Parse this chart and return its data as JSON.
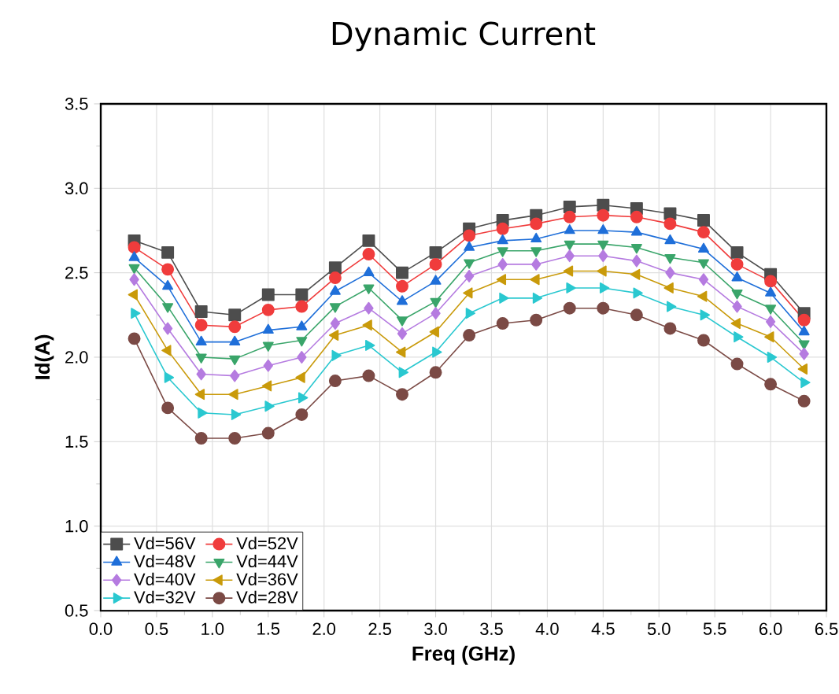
{
  "chart_data": {
    "type": "line",
    "title": "Dynamic Current",
    "xlabel": "Freq (GHz)",
    "ylabel": "Id(A)",
    "x": [
      0.3,
      0.6,
      0.9,
      1.2,
      1.5,
      1.8,
      2.1,
      2.4,
      2.7,
      3.0,
      3.3,
      3.6,
      3.9,
      4.2,
      4.5,
      4.8,
      5.1,
      5.4,
      5.7,
      6.0,
      6.3
    ],
    "xlim": [
      0,
      6.5
    ],
    "xticks": [
      {
        "value": 0,
        "label": "0.0"
      },
      0.5,
      {
        "value": 1,
        "label": "1.0"
      },
      1.5,
      {
        "value": 2,
        "label": "2.0"
      },
      2.5,
      {
        "value": 3,
        "label": "3.0"
      },
      3.5,
      {
        "value": 4,
        "label": "4.0"
      },
      4.5,
      {
        "value": 5,
        "label": "5.0"
      },
      5.5,
      {
        "value": 6,
        "label": "6.0"
      },
      6.5
    ],
    "ylim": [
      0.5,
      3.5
    ],
    "yticks": [
      0.5,
      {
        "value": 1,
        "label": "1.0"
      },
      1.5,
      {
        "value": 2,
        "label": "2.0"
      },
      2.5,
      {
        "value": 3,
        "label": "3.0"
      },
      3.5
    ],
    "grid": true,
    "legend": "bottom left",
    "series": [
      {
        "name": "Vd=56V",
        "color": "#4d4d4d",
        "marker": "square",
        "values": [
          2.69,
          2.62,
          2.27,
          2.25,
          2.37,
          2.37,
          2.53,
          2.69,
          2.5,
          2.62,
          2.76,
          2.81,
          2.84,
          2.89,
          2.9,
          2.88,
          2.85,
          2.81,
          2.62,
          2.49,
          2.26
        ]
      },
      {
        "name": "Vd=52V",
        "color": "#f03c3c",
        "marker": "circle",
        "values": [
          2.65,
          2.52,
          2.19,
          2.18,
          2.28,
          2.3,
          2.47,
          2.61,
          2.42,
          2.55,
          2.72,
          2.76,
          2.79,
          2.83,
          2.84,
          2.83,
          2.79,
          2.74,
          2.55,
          2.45,
          2.22
        ]
      },
      {
        "name": "Vd=48V",
        "color": "#1f6fd9",
        "marker": "triangle",
        "values": [
          2.59,
          2.42,
          2.09,
          2.09,
          2.16,
          2.18,
          2.39,
          2.5,
          2.33,
          2.45,
          2.65,
          2.69,
          2.7,
          2.75,
          2.75,
          2.74,
          2.69,
          2.64,
          2.47,
          2.38,
          2.15
        ]
      },
      {
        "name": "Vd=44V",
        "color": "#3aa56a",
        "marker": "triangle-down",
        "values": [
          2.53,
          2.3,
          2.0,
          1.99,
          2.07,
          2.1,
          2.3,
          2.41,
          2.22,
          2.33,
          2.56,
          2.63,
          2.63,
          2.67,
          2.67,
          2.65,
          2.59,
          2.56,
          2.38,
          2.29,
          2.08
        ]
      },
      {
        "name": "Vd=40V",
        "color": "#b57be0",
        "marker": "diamond",
        "values": [
          2.46,
          2.17,
          1.9,
          1.89,
          1.95,
          2.0,
          2.2,
          2.29,
          2.14,
          2.26,
          2.48,
          2.55,
          2.55,
          2.6,
          2.6,
          2.57,
          2.5,
          2.46,
          2.3,
          2.21,
          2.02
        ]
      },
      {
        "name": "Vd=36V",
        "color": "#c99a0a",
        "marker": "triangle-left",
        "values": [
          2.37,
          2.04,
          1.78,
          1.78,
          1.83,
          1.88,
          2.13,
          2.19,
          2.03,
          2.15,
          2.38,
          2.46,
          2.46,
          2.51,
          2.51,
          2.49,
          2.41,
          2.36,
          2.2,
          2.12,
          1.93
        ]
      },
      {
        "name": "Vd=32V",
        "color": "#2ac8d0",
        "marker": "triangle-right",
        "values": [
          2.26,
          1.88,
          1.67,
          1.66,
          1.71,
          1.76,
          2.01,
          2.07,
          1.91,
          2.03,
          2.26,
          2.35,
          2.35,
          2.41,
          2.41,
          2.38,
          2.3,
          2.25,
          2.12,
          2.0,
          1.85
        ]
      },
      {
        "name": "Vd=28V",
        "color": "#7b4a45",
        "marker": "circle",
        "values": [
          2.11,
          1.7,
          1.52,
          1.52,
          1.55,
          1.66,
          1.86,
          1.89,
          1.78,
          1.91,
          2.13,
          2.2,
          2.22,
          2.29,
          2.29,
          2.25,
          2.17,
          2.1,
          1.96,
          1.84,
          1.74
        ]
      }
    ]
  }
}
